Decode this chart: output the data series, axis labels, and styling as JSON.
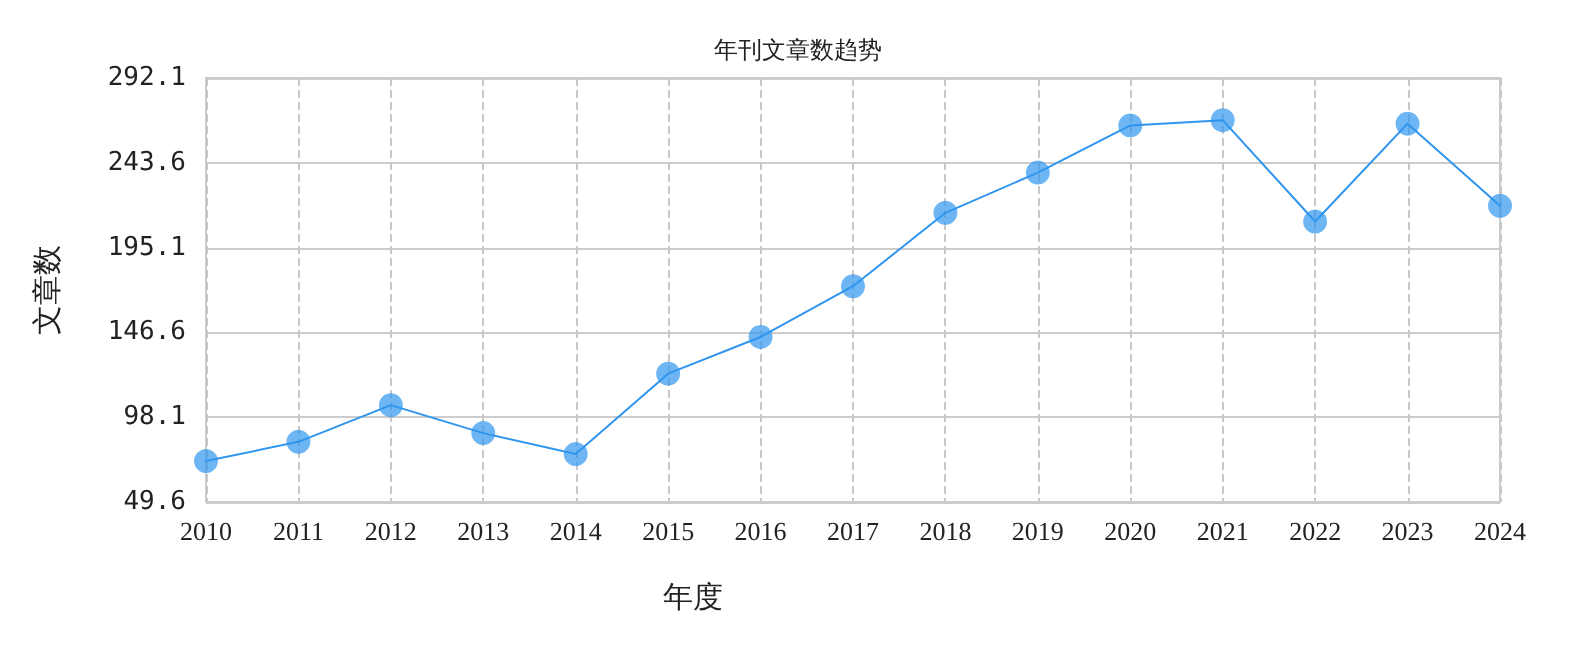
{
  "chart_data": {
    "type": "line",
    "title": "年刊文章数趋势",
    "xlabel": "年度",
    "ylabel": "文章数",
    "categories": [
      "2010",
      "2011",
      "2012",
      "2013",
      "2014",
      "2015",
      "2016",
      "2017",
      "2018",
      "2019",
      "2020",
      "2021",
      "2022",
      "2023",
      "2024"
    ],
    "series": [
      {
        "color": "#2f95ee",
        "values": [
          73,
          84,
          105,
          89,
          77,
          123,
          144,
          173,
          215,
          238,
          265,
          268,
          210,
          266,
          219
        ]
      }
    ],
    "ylim": [
      49.6,
      292.1
    ],
    "yticks": [
      49.6,
      98.1,
      146.6,
      195.1,
      243.6,
      292.1
    ],
    "grid": true,
    "marker": "circle",
    "line_style": "solid"
  }
}
